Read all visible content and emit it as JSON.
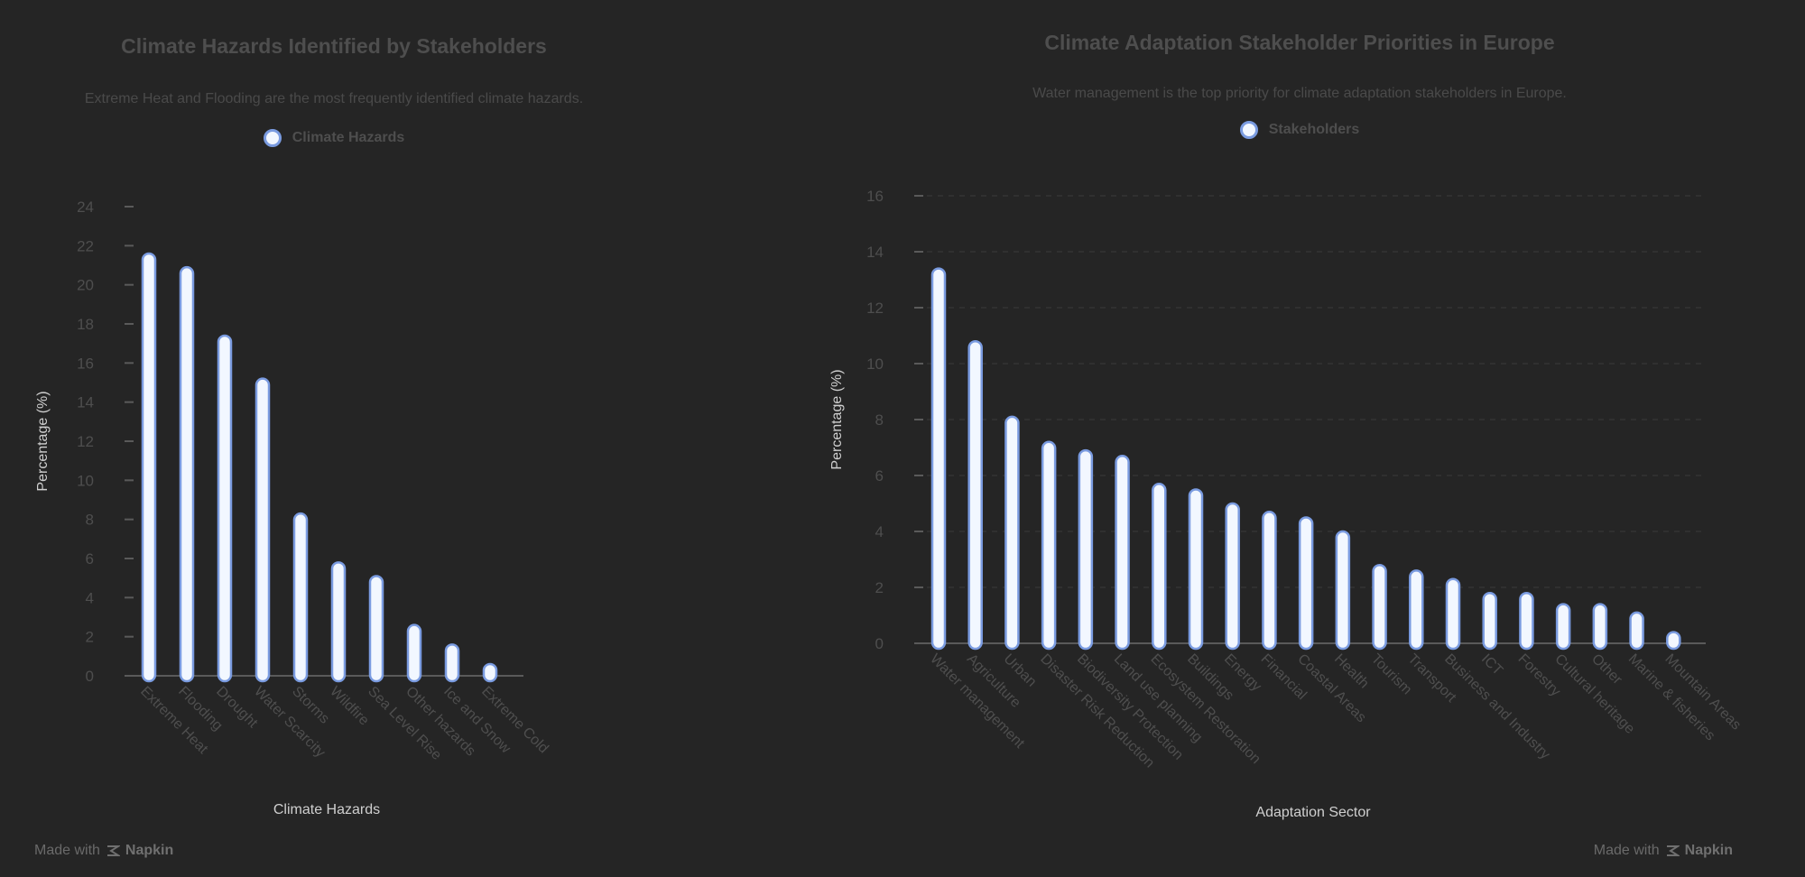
{
  "chart_data": [
    {
      "type": "bar",
      "title": "Climate Hazards Identified by Stakeholders",
      "subtitle": "Extreme Heat and Flooding are the most frequently identified climate hazards.",
      "legend": [
        "Climate Hazards"
      ],
      "legend_position": "top-center",
      "xlabel": "Climate Hazards",
      "ylabel": "Percentage (%)",
      "ylim": [
        0,
        24
      ],
      "yticks": [
        0,
        2,
        4,
        6,
        8,
        10,
        12,
        14,
        16,
        18,
        20,
        22,
        24
      ],
      "grid": false,
      "categories": [
        "Extreme Heat",
        "Flooding",
        "Drought",
        "Water Scarcity",
        "Storms",
        "Wildfire",
        "Sea Level Rise",
        "Other hazards",
        "Ice and Snow",
        "Extreme Cold"
      ],
      "series": [
        {
          "name": "Climate Hazards",
          "values": [
            21.6,
            20.9,
            17.4,
            15.2,
            8.3,
            5.8,
            5.1,
            2.6,
            1.6,
            0.6
          ]
        }
      ]
    },
    {
      "type": "bar",
      "title": "Climate Adaptation Stakeholder Priorities in Europe",
      "subtitle": "Water management is the top priority for climate adaptation stakeholders in Europe.",
      "legend": [
        "Stakeholders"
      ],
      "legend_position": "top-center",
      "xlabel": "Adaptation Sector",
      "ylabel": "Percentage (%)",
      "ylim": [
        0,
        16
      ],
      "yticks": [
        0,
        2,
        4,
        6,
        8,
        10,
        12,
        14,
        16
      ],
      "grid": true,
      "categories": [
        "Water management",
        "Agriculture",
        "Urban",
        "Disaster Risk Reduction",
        "Biodiversity Protection",
        "Land use planning",
        "Ecosystem Restoration",
        "Buildings",
        "Energy",
        "Financial",
        "Coastal Areas",
        "Health",
        "Tourism",
        "Transport",
        "Business and Industry",
        "ICT",
        "Forestry",
        "Cultural heritage",
        "Other",
        "Marine & fisheries",
        "Mountain Areas"
      ],
      "series": [
        {
          "name": "Stakeholders",
          "values": [
            13.4,
            10.8,
            8.1,
            7.2,
            6.9,
            6.7,
            5.7,
            5.5,
            5.0,
            4.7,
            4.5,
            4.0,
            2.8,
            2.6,
            2.3,
            1.8,
            1.8,
            1.4,
            1.4,
            1.1,
            0.4
          ]
        }
      ]
    }
  ],
  "watermark": {
    "prefix": "Made with",
    "brand": "Napkin",
    "icon": "napkin-logo-icon"
  },
  "colors": {
    "background": "#252525",
    "bar_fill": "#f2f7ff",
    "bar_stroke": "#7a9be0",
    "axis": "#5a5a5a",
    "grid": "#3a3a3a",
    "text_dim": "#4e4e4e",
    "text_label": "#cfcfcf"
  }
}
